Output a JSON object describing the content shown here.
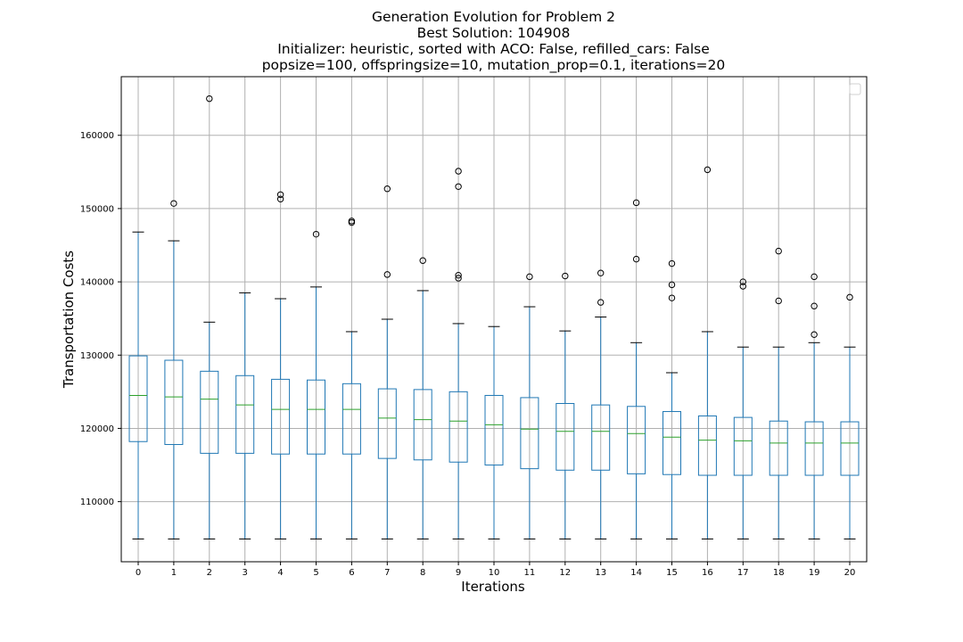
{
  "chart_data": {
    "type": "boxplot",
    "title_lines": [
      "Generation Evolution for Problem 2",
      "Best Solution: 104908",
      "Initializer: heuristic, sorted with ACO: False, refilled_cars: False",
      "popsize=100, offspringsize=10, mutation_prop=0.1, iterations=20"
    ],
    "xlabel": "Iterations",
    "ylabel": "Transportation Costs",
    "ylim": [
      101800,
      168000
    ],
    "yticks": [
      110000,
      120000,
      130000,
      140000,
      150000,
      160000
    ],
    "grid": true,
    "legend": "top-right (empty)",
    "colors": {
      "box": "#1f77b4",
      "median": "#2ca02c",
      "whisker": "#1f77b4",
      "flier": "#000000",
      "grid": "#b0b0b0"
    },
    "categories": [
      "0",
      "1",
      "2",
      "3",
      "4",
      "5",
      "6",
      "7",
      "8",
      "9",
      "10",
      "11",
      "12",
      "13",
      "14",
      "15",
      "16",
      "17",
      "18",
      "19",
      "20"
    ],
    "boxes": [
      {
        "label": "0",
        "whislo": 104908,
        "q1": 118200,
        "med": 124500,
        "q3": 129900,
        "whishi": 146800,
        "fliers": []
      },
      {
        "label": "1",
        "whislo": 104908,
        "q1": 117800,
        "med": 124300,
        "q3": 129300,
        "whishi": 145600,
        "fliers": [
          150700
        ]
      },
      {
        "label": "2",
        "whislo": 104908,
        "q1": 116600,
        "med": 124000,
        "q3": 127800,
        "whishi": 134500,
        "fliers": [
          165000
        ]
      },
      {
        "label": "3",
        "whislo": 104908,
        "q1": 116600,
        "med": 123200,
        "q3": 127200,
        "whishi": 138500,
        "fliers": []
      },
      {
        "label": "4",
        "whislo": 104908,
        "q1": 116500,
        "med": 122600,
        "q3": 126700,
        "whishi": 137700,
        "fliers": [
          151900,
          151300
        ]
      },
      {
        "label": "5",
        "whislo": 104908,
        "q1": 116500,
        "med": 122600,
        "q3": 126600,
        "whishi": 139300,
        "fliers": [
          146500
        ]
      },
      {
        "label": "6",
        "whislo": 104908,
        "q1": 116500,
        "med": 122600,
        "q3": 126100,
        "whishi": 133200,
        "fliers": [
          148300,
          148100
        ]
      },
      {
        "label": "7",
        "whislo": 104908,
        "q1": 115900,
        "med": 121400,
        "q3": 125400,
        "whishi": 134900,
        "fliers": [
          152700,
          141000
        ]
      },
      {
        "label": "8",
        "whislo": 104908,
        "q1": 115700,
        "med": 121200,
        "q3": 125300,
        "whishi": 138800,
        "fliers": [
          142900
        ]
      },
      {
        "label": "9",
        "whislo": 104908,
        "q1": 115400,
        "med": 121000,
        "q3": 125000,
        "whishi": 134300,
        "fliers": [
          155100,
          153000,
          140900,
          140500
        ]
      },
      {
        "label": "10",
        "whislo": 104908,
        "q1": 115000,
        "med": 120500,
        "q3": 124500,
        "whishi": 133900,
        "fliers": []
      },
      {
        "label": "11",
        "whislo": 104908,
        "q1": 114500,
        "med": 119900,
        "q3": 124200,
        "whishi": 136600,
        "fliers": [
          140700
        ]
      },
      {
        "label": "12",
        "whislo": 104908,
        "q1": 114300,
        "med": 119600,
        "q3": 123400,
        "whishi": 133300,
        "fliers": [
          140800
        ]
      },
      {
        "label": "13",
        "whislo": 104908,
        "q1": 114300,
        "med": 119600,
        "q3": 123200,
        "whishi": 135200,
        "fliers": [
          141200,
          137200
        ]
      },
      {
        "label": "14",
        "whislo": 104908,
        "q1": 113800,
        "med": 119300,
        "q3": 123000,
        "whishi": 131700,
        "fliers": [
          150800,
          143100
        ]
      },
      {
        "label": "15",
        "whislo": 104908,
        "q1": 113700,
        "med": 118800,
        "q3": 122300,
        "whishi": 127600,
        "fliers": [
          142500,
          139600,
          137800
        ]
      },
      {
        "label": "16",
        "whislo": 104908,
        "q1": 113600,
        "med": 118400,
        "q3": 121700,
        "whishi": 133200,
        "fliers": [
          155300
        ]
      },
      {
        "label": "17",
        "whislo": 104908,
        "q1": 113600,
        "med": 118300,
        "q3": 121500,
        "whishi": 131100,
        "fliers": [
          140000,
          139400
        ]
      },
      {
        "label": "18",
        "whislo": 104908,
        "q1": 113600,
        "med": 118000,
        "q3": 121000,
        "whishi": 131100,
        "fliers": [
          144200,
          137400
        ]
      },
      {
        "label": "19",
        "whislo": 104908,
        "q1": 113600,
        "med": 118000,
        "q3": 120900,
        "whishi": 131700,
        "fliers": [
          140700,
          136700,
          132800
        ]
      },
      {
        "label": "20",
        "whislo": 104908,
        "q1": 113600,
        "med": 118000,
        "q3": 120900,
        "whishi": 131100,
        "fliers": [
          137900
        ]
      }
    ]
  }
}
